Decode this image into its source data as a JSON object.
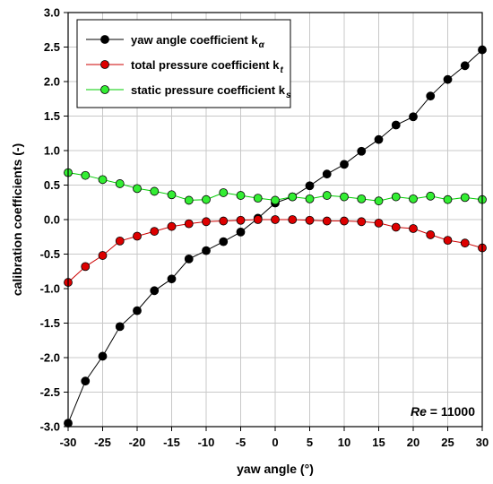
{
  "chart_data": {
    "type": "line",
    "xlabel": "yaw angle (°)",
    "ylabel": "calibration coefficients (-)",
    "xlim": [
      -30,
      30
    ],
    "ylim": [
      -3.0,
      3.0
    ],
    "x_ticks": [
      "-30",
      "-25",
      "-20",
      "-15",
      "-10",
      "-5",
      "0",
      "5",
      "10",
      "15",
      "20",
      "25",
      "30"
    ],
    "y_ticks": [
      "-3.0",
      "-2.5",
      "-2.0",
      "-1.5",
      "-1.0",
      "-0.5",
      "0.0",
      "0.5",
      "1.0",
      "1.5",
      "2.0",
      "2.5",
      "3.0"
    ],
    "grid": true,
    "legend_position": "top-left",
    "annotation": {
      "italic": "Re",
      "text": " = 11000"
    },
    "x": [
      -30,
      -27.5,
      -25,
      -22.5,
      -20,
      -17.5,
      -15,
      -12.5,
      -10,
      -7.5,
      -5,
      -2.5,
      0,
      2.5,
      5,
      7.5,
      10,
      12.5,
      15,
      17.5,
      20,
      22.5,
      25,
      27.5,
      30
    ],
    "series": [
      {
        "label_text": "yaw angle coefficient k",
        "label_sub": "α",
        "color": "#000000",
        "marker_fill": "#000000",
        "values": [
          -2.95,
          -2.34,
          -1.98,
          -1.55,
          -1.32,
          -1.03,
          -0.86,
          -0.57,
          -0.45,
          -0.32,
          -0.18,
          0.02,
          0.24,
          0.33,
          0.49,
          0.66,
          0.8,
          0.99,
          1.16,
          1.37,
          1.49,
          1.79,
          2.03,
          2.23,
          2.46
        ]
      },
      {
        "label_text": "total pressure coefficient k",
        "label_sub": "t",
        "color": "#cc0000",
        "marker_fill": "#dd0000",
        "values": [
          -0.91,
          -0.68,
          -0.52,
          -0.31,
          -0.24,
          -0.17,
          -0.1,
          -0.06,
          -0.03,
          -0.02,
          -0.01,
          0.0,
          0.0,
          0.0,
          -0.01,
          -0.02,
          -0.02,
          -0.03,
          -0.05,
          -0.11,
          -0.13,
          -0.22,
          -0.3,
          -0.34,
          -0.41
        ]
      },
      {
        "label_text": "static pressure coefficient k",
        "label_sub": "s",
        "color": "#00cc00",
        "marker_fill": "#33ee33",
        "values": [
          0.68,
          0.64,
          0.58,
          0.52,
          0.45,
          0.41,
          0.36,
          0.28,
          0.29,
          0.39,
          0.35,
          0.31,
          0.28,
          0.33,
          0.3,
          0.35,
          0.33,
          0.3,
          0.27,
          0.33,
          0.3,
          0.34,
          0.29,
          0.32,
          0.29
        ]
      }
    ]
  }
}
